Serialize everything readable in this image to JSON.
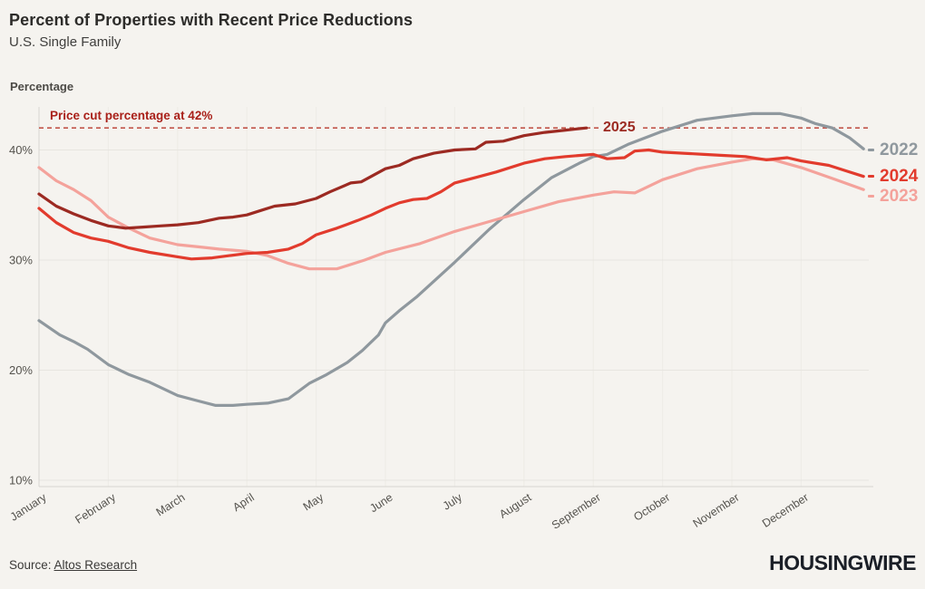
{
  "header": {
    "title": "Percent of Properties with Recent Price Reductions",
    "subtitle": "U.S. Single Family",
    "axis_title": "Percentage"
  },
  "annotation": {
    "text": "Price cut percentage at 42%"
  },
  "footer": {
    "source_prefix": "Source: ",
    "source_link": "Altos Research",
    "brand": "HOUSINGWIRE"
  },
  "colors": {
    "background": "#f5f3ef",
    "grid_h": "#e7e5e0",
    "grid_v": "#edebe6",
    "axis": "#d7d5d0",
    "tick_text": "#55534e",
    "ref_line": "#c2564a",
    "annotation_text": "#a92019"
  },
  "chart_data": {
    "type": "line",
    "title": "Percent of Properties with Recent Price Reductions",
    "subtitle": "U.S. Single Family",
    "ylabel": "Percentage",
    "ylim": [
      10,
      44
    ],
    "yticks": [
      10,
      20,
      30,
      40
    ],
    "ytick_suffix": "%",
    "grid": true,
    "legend_position": "line-end-labels",
    "x_unit": "month (0 = January ... 11 = December)",
    "x_months": [
      "January",
      "February",
      "March",
      "April",
      "May",
      "June",
      "July",
      "August",
      "September",
      "October",
      "November",
      "December"
    ],
    "ref_line": {
      "value": 42,
      "label": "Price cut percentage at 42%",
      "style": "dashed"
    },
    "series": [
      {
        "name": "2022",
        "color": "#8f989e",
        "points": [
          [
            0,
            24.5
          ],
          [
            0.3,
            23.2
          ],
          [
            0.5,
            22.6
          ],
          [
            0.7,
            21.9
          ],
          [
            1,
            20.5
          ],
          [
            1.3,
            19.6
          ],
          [
            1.6,
            18.9
          ],
          [
            2,
            17.7
          ],
          [
            2.3,
            17.2
          ],
          [
            2.55,
            16.8
          ],
          [
            2.8,
            16.8
          ],
          [
            3,
            16.9
          ],
          [
            3.3,
            17.0
          ],
          [
            3.6,
            17.4
          ],
          [
            3.9,
            18.8
          ],
          [
            4.15,
            19.6
          ],
          [
            4.45,
            20.7
          ],
          [
            4.67,
            21.8
          ],
          [
            4.9,
            23.2
          ],
          [
            5,
            24.3
          ],
          [
            5.2,
            25.4
          ],
          [
            5.46,
            26.7
          ],
          [
            5.72,
            28.2
          ],
          [
            6,
            29.8
          ],
          [
            6.5,
            32.8
          ],
          [
            7,
            35.5
          ],
          [
            7.4,
            37.5
          ],
          [
            7.8,
            38.8
          ],
          [
            8,
            39.4
          ],
          [
            8.2,
            39.6
          ],
          [
            8.5,
            40.5
          ],
          [
            9,
            41.7
          ],
          [
            9.5,
            42.7
          ],
          [
            10,
            43.1
          ],
          [
            10.3,
            43.3
          ],
          [
            10.7,
            43.3
          ],
          [
            11,
            42.9
          ],
          [
            11.2,
            42.4
          ],
          [
            11.45,
            42.0
          ],
          [
            11.7,
            41.1
          ],
          [
            11.9,
            40.1
          ]
        ]
      },
      {
        "name": "2023",
        "color": "#f4a29b",
        "points": [
          [
            0,
            38.4
          ],
          [
            0.25,
            37.2
          ],
          [
            0.5,
            36.4
          ],
          [
            0.75,
            35.4
          ],
          [
            1,
            33.9
          ],
          [
            1.3,
            32.9
          ],
          [
            1.6,
            32.0
          ],
          [
            2,
            31.4
          ],
          [
            2.3,
            31.2
          ],
          [
            2.6,
            31.0
          ],
          [
            3,
            30.8
          ],
          [
            3.3,
            30.4
          ],
          [
            3.6,
            29.7
          ],
          [
            3.9,
            29.2
          ],
          [
            4.3,
            29.2
          ],
          [
            4.7,
            30.0
          ],
          [
            5,
            30.7
          ],
          [
            5.5,
            31.5
          ],
          [
            6,
            32.6
          ],
          [
            6.5,
            33.5
          ],
          [
            7,
            34.4
          ],
          [
            7.5,
            35.3
          ],
          [
            8,
            35.9
          ],
          [
            8.3,
            36.2
          ],
          [
            8.6,
            36.1
          ],
          [
            9,
            37.3
          ],
          [
            9.5,
            38.3
          ],
          [
            10,
            38.9
          ],
          [
            10.3,
            39.2
          ],
          [
            10.6,
            39.1
          ],
          [
            11,
            38.4
          ],
          [
            11.5,
            37.3
          ],
          [
            11.9,
            36.4
          ]
        ]
      },
      {
        "name": "2024",
        "color": "#e23b2d",
        "points": [
          [
            0,
            34.7
          ],
          [
            0.25,
            33.4
          ],
          [
            0.5,
            32.5
          ],
          [
            0.75,
            32.0
          ],
          [
            1,
            31.7
          ],
          [
            1.3,
            31.1
          ],
          [
            1.6,
            30.7
          ],
          [
            2,
            30.3
          ],
          [
            2.2,
            30.1
          ],
          [
            2.5,
            30.2
          ],
          [
            2.75,
            30.4
          ],
          [
            3,
            30.6
          ],
          [
            3.3,
            30.7
          ],
          [
            3.6,
            31.0
          ],
          [
            3.8,
            31.5
          ],
          [
            4,
            32.3
          ],
          [
            4.3,
            32.9
          ],
          [
            4.6,
            33.6
          ],
          [
            4.8,
            34.1
          ],
          [
            5,
            34.7
          ],
          [
            5.2,
            35.2
          ],
          [
            5.4,
            35.5
          ],
          [
            5.6,
            35.6
          ],
          [
            5.8,
            36.2
          ],
          [
            6,
            37.0
          ],
          [
            6.3,
            37.5
          ],
          [
            6.6,
            38.0
          ],
          [
            7,
            38.8
          ],
          [
            7.3,
            39.2
          ],
          [
            7.6,
            39.4
          ],
          [
            8,
            39.6
          ],
          [
            8.2,
            39.2
          ],
          [
            8.45,
            39.3
          ],
          [
            8.6,
            39.9
          ],
          [
            8.8,
            40.0
          ],
          [
            9,
            39.8
          ],
          [
            9.3,
            39.7
          ],
          [
            9.6,
            39.6
          ],
          [
            9.9,
            39.5
          ],
          [
            10.2,
            39.4
          ],
          [
            10.5,
            39.1
          ],
          [
            10.8,
            39.3
          ],
          [
            11,
            39.0
          ],
          [
            11.4,
            38.6
          ],
          [
            11.65,
            38.1
          ],
          [
            11.9,
            37.6
          ]
        ]
      },
      {
        "name": "2025",
        "color": "#9c2a22",
        "points": [
          [
            0,
            36.0
          ],
          [
            0.25,
            34.9
          ],
          [
            0.5,
            34.2
          ],
          [
            0.75,
            33.6
          ],
          [
            1,
            33.1
          ],
          [
            1.25,
            32.9
          ],
          [
            1.5,
            33.0
          ],
          [
            1.75,
            33.1
          ],
          [
            2,
            33.2
          ],
          [
            2.3,
            33.4
          ],
          [
            2.6,
            33.8
          ],
          [
            2.8,
            33.9
          ],
          [
            3,
            34.1
          ],
          [
            3.2,
            34.5
          ],
          [
            3.4,
            34.9
          ],
          [
            3.7,
            35.1
          ],
          [
            4,
            35.6
          ],
          [
            4.2,
            36.2
          ],
          [
            4.5,
            37.0
          ],
          [
            4.65,
            37.1
          ],
          [
            5,
            38.3
          ],
          [
            5.2,
            38.6
          ],
          [
            5.4,
            39.2
          ],
          [
            5.7,
            39.7
          ],
          [
            6,
            40.0
          ],
          [
            6.3,
            40.1
          ],
          [
            6.45,
            40.7
          ],
          [
            6.7,
            40.8
          ],
          [
            7,
            41.3
          ],
          [
            7.3,
            41.6
          ],
          [
            7.6,
            41.8
          ],
          [
            7.9,
            42.0
          ]
        ]
      }
    ]
  }
}
